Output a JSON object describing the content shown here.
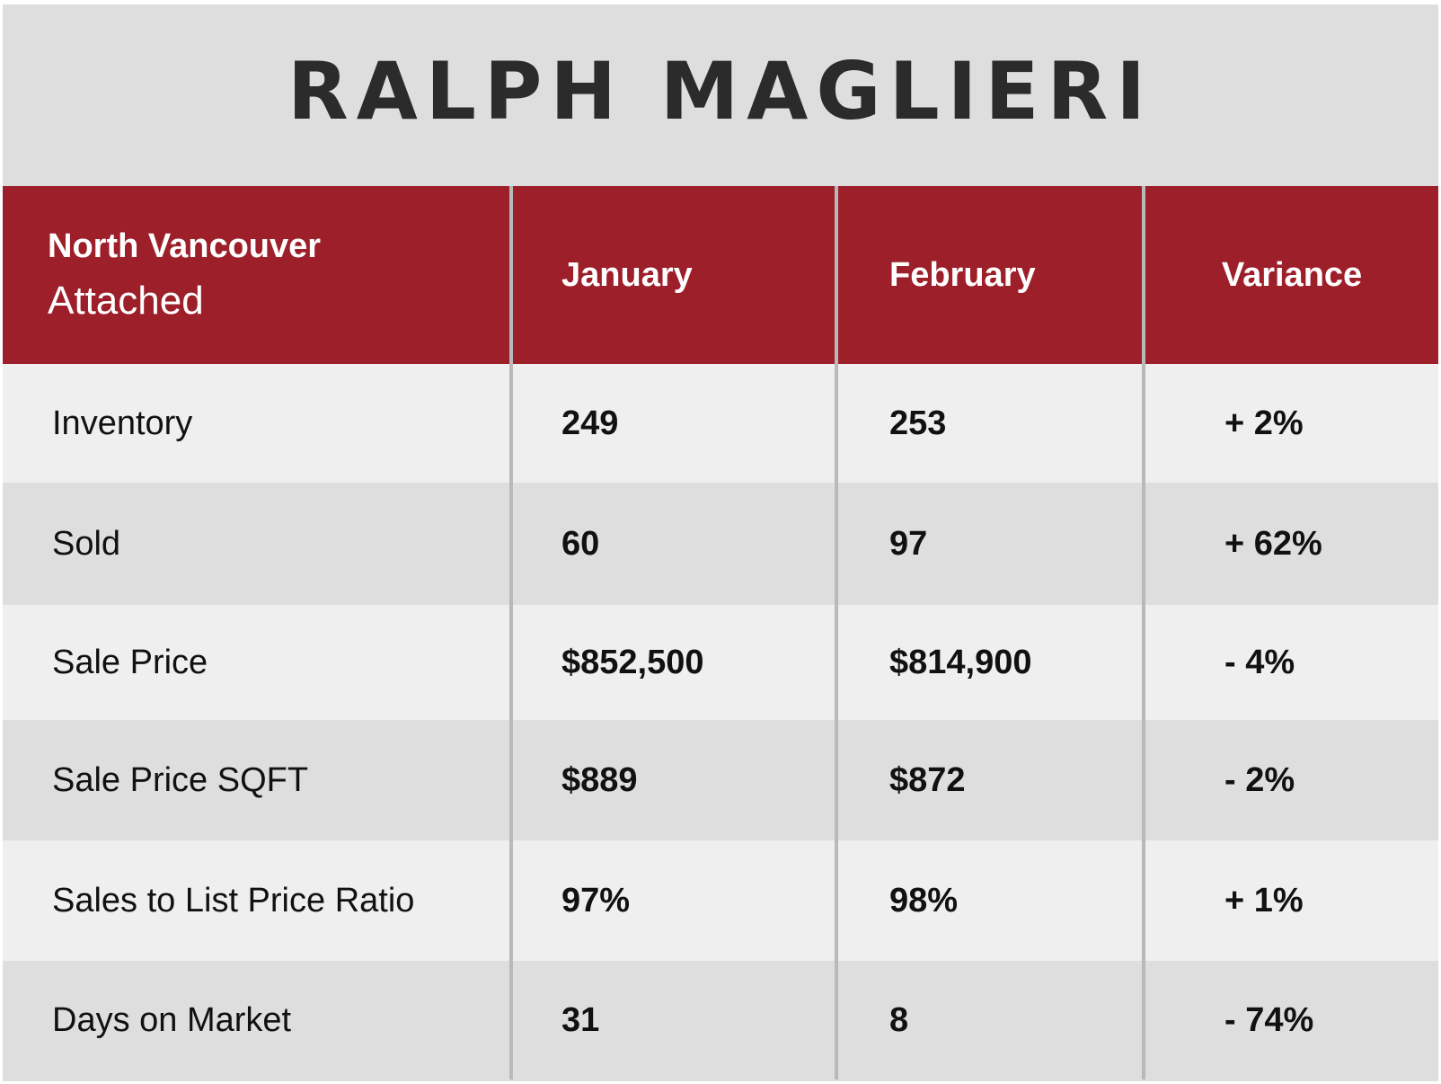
{
  "brand": {
    "name": "RALPH MAGLIERI"
  },
  "table": {
    "header": {
      "region": "North Vancouver",
      "property_type": "Attached",
      "col_january": "January",
      "col_february": "February",
      "col_variance": "Variance"
    },
    "rows": [
      {
        "metric": "Inventory",
        "january": "249",
        "february": "253",
        "variance": "+ 2%"
      },
      {
        "metric": "Sold",
        "january": "60",
        "february": "97",
        "variance": "+ 62%"
      },
      {
        "metric": "Sale Price",
        "january": "$852,500",
        "february": "$814,900",
        "variance": "- 4%"
      },
      {
        "metric": "Sale Price SQFT",
        "january": "$889",
        "february": "$872",
        "variance": "- 2%"
      },
      {
        "metric": "Sales to List Price Ratio",
        "january": "97%",
        "february": "98%",
        "variance": "+ 1%"
      },
      {
        "metric": "Days on Market",
        "january": "31",
        "february": "8",
        "variance": "- 74%"
      }
    ]
  },
  "colors": {
    "header_background": "#9d1f2a",
    "header_text": "#ffffff",
    "page_background": "#dedede",
    "row_light": "#efefef",
    "row_dark": "#dedede",
    "divider": "#b9b9b9"
  }
}
